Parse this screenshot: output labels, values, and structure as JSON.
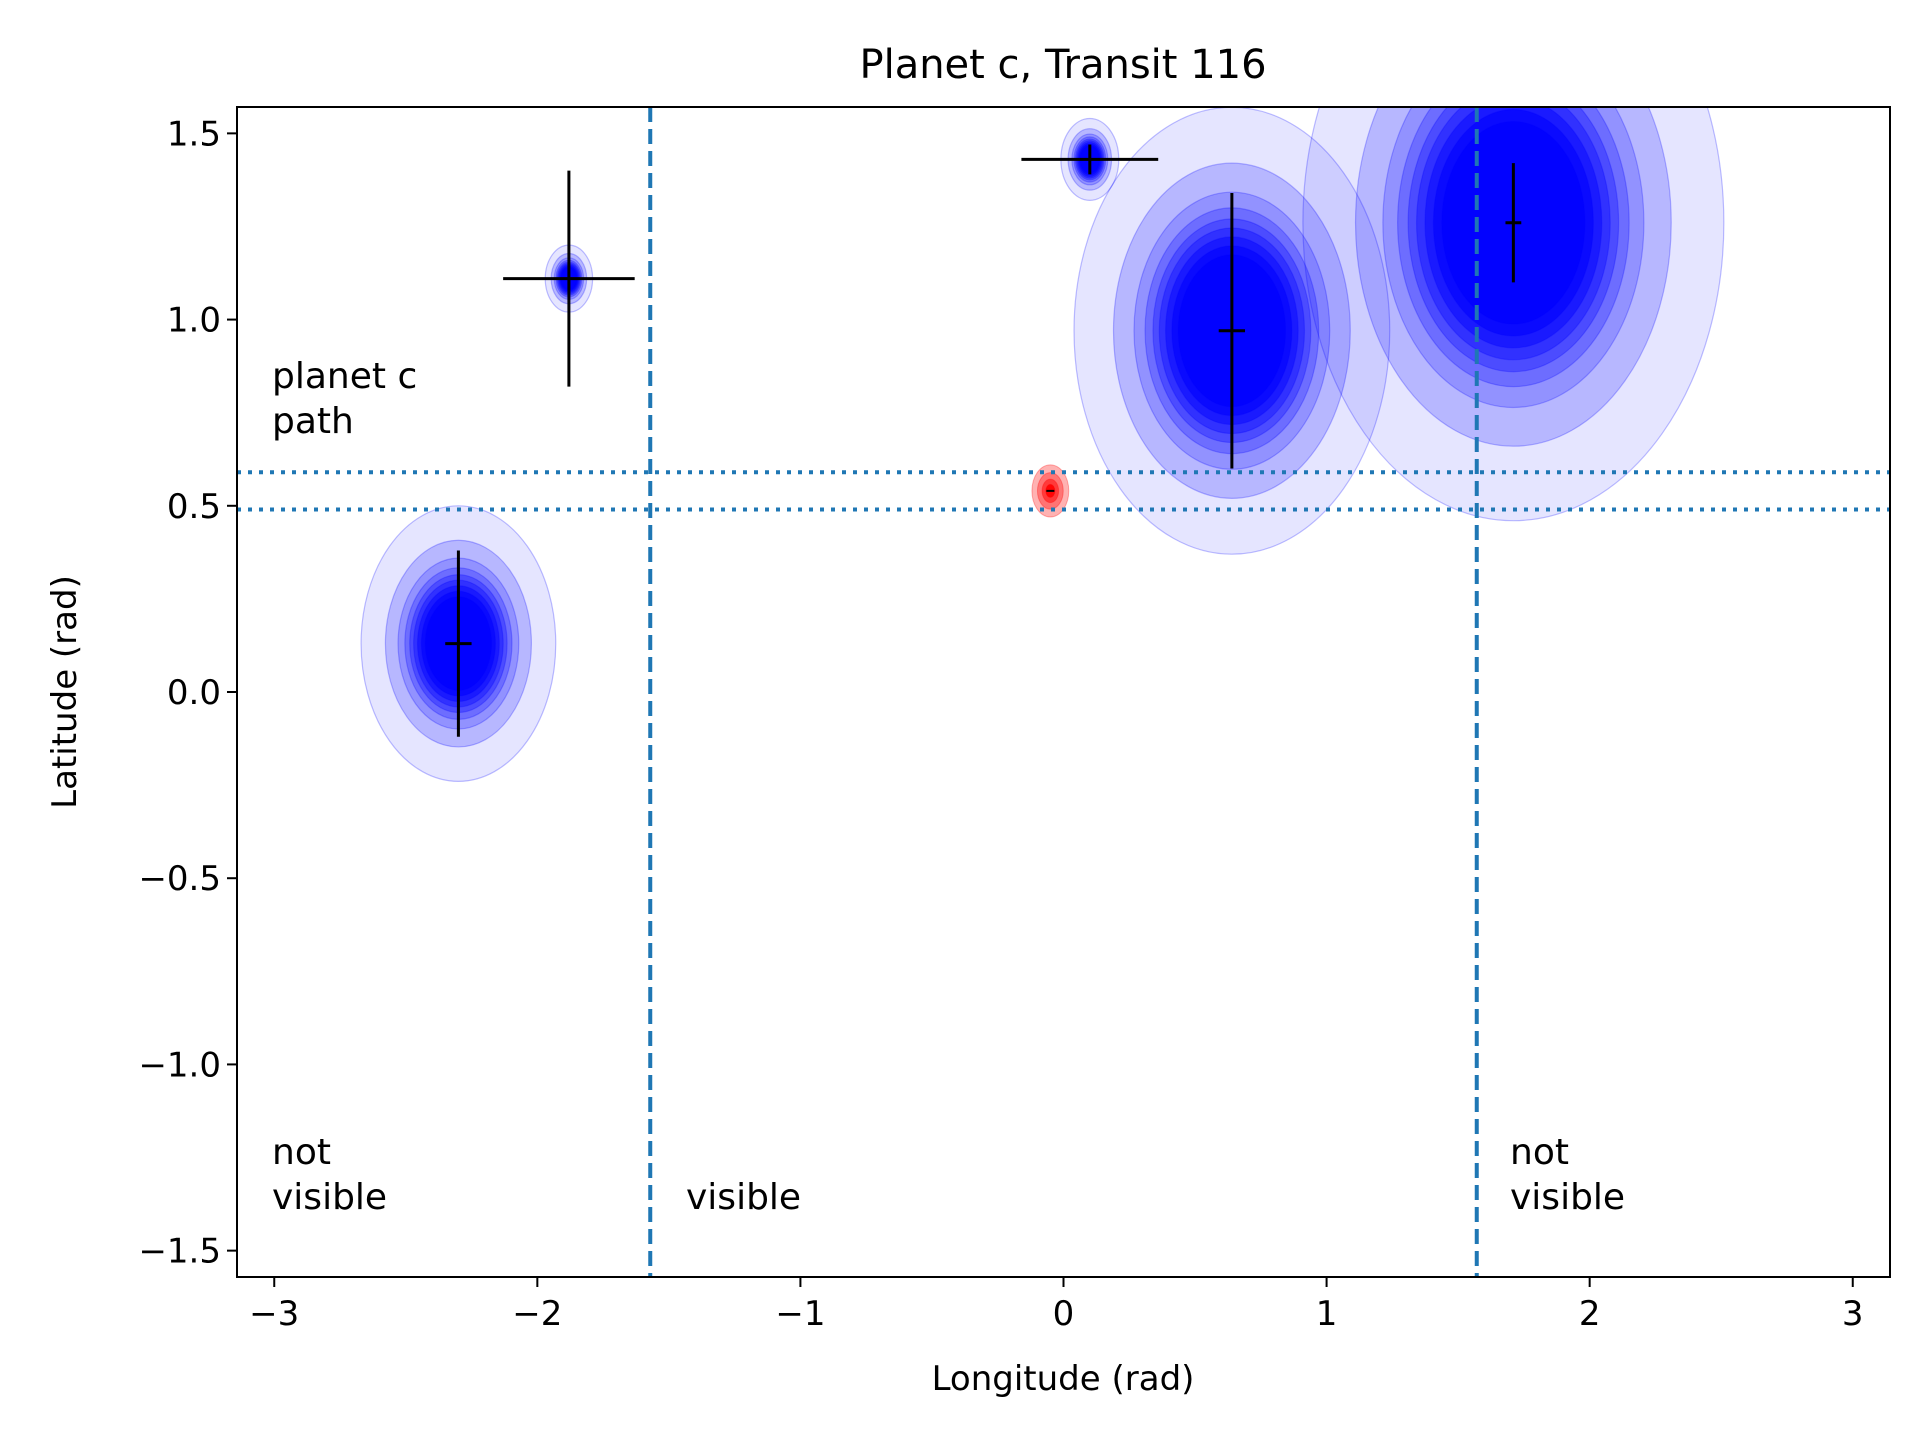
{
  "chart_data": {
    "type": "scatter",
    "title": "Planet c, Transit 116",
    "xlabel": "Longitude (rad)",
    "ylabel": "Latitude (rad)",
    "xlim": [
      -3.14159,
      3.14159
    ],
    "ylim": [
      -1.5708,
      1.5708
    ],
    "xticks": [
      {
        "value": -3,
        "label": "−3"
      },
      {
        "value": -2,
        "label": "−2"
      },
      {
        "value": -1,
        "label": "−1"
      },
      {
        "value": 0,
        "label": "0"
      },
      {
        "value": 1,
        "label": "1"
      },
      {
        "value": 2,
        "label": "2"
      },
      {
        "value": 3,
        "label": "3"
      }
    ],
    "yticks": [
      {
        "value": -1.5,
        "label": "−1.5"
      },
      {
        "value": -1.0,
        "label": "−1.0"
      },
      {
        "value": -0.5,
        "label": "−0.5"
      },
      {
        "value": 0.0,
        "label": "0.0"
      },
      {
        "value": 0.5,
        "label": "0.5"
      },
      {
        "value": 1.0,
        "label": "1.0"
      },
      {
        "value": 1.5,
        "label": "1.5"
      }
    ],
    "grid": false,
    "colors": {
      "spot": "#0000ff",
      "planet": "#ff0000",
      "guide_lines": "#1f77b4",
      "error_bars": "#000000"
    },
    "visibility_lines": [
      -1.5708,
      1.5708
    ],
    "planet_path_band": [
      0.49,
      0.59
    ],
    "spots": [
      {
        "lon": -2.3,
        "lat": 0.13,
        "lon_err": 0.05,
        "lat_err": 0.25,
        "rx": 0.37,
        "ry": 0.37
      },
      {
        "lon": -1.88,
        "lat": 1.11,
        "lon_err": 0.25,
        "lat_err": 0.29,
        "rx": 0.09,
        "ry": 0.09
      },
      {
        "lon": 0.1,
        "lat": 1.43,
        "lon_err": 0.26,
        "lat_err": 0.04,
        "rx": 0.11,
        "ry": 0.11
      },
      {
        "lon": 0.64,
        "lat": 0.97,
        "lon_err": 0.05,
        "lat_err": 0.37,
        "rx": 0.6,
        "ry": 0.6
      },
      {
        "lon": 1.71,
        "lat": 1.26,
        "lon_err": 0.03,
        "lat_err": 0.16,
        "rx": 0.8,
        "ry": 0.8
      }
    ],
    "planet": {
      "lon": -0.05,
      "lat": 0.54,
      "rx": 0.07,
      "ry": 0.07
    },
    "annotations": {
      "path_label_line1": "planet c",
      "path_label_line2": "path",
      "left_not_visible_line1": "not",
      "left_not_visible_line2": "visible",
      "visible": "visible",
      "right_not_visible_line1": "not",
      "right_not_visible_line2": "visible"
    }
  }
}
